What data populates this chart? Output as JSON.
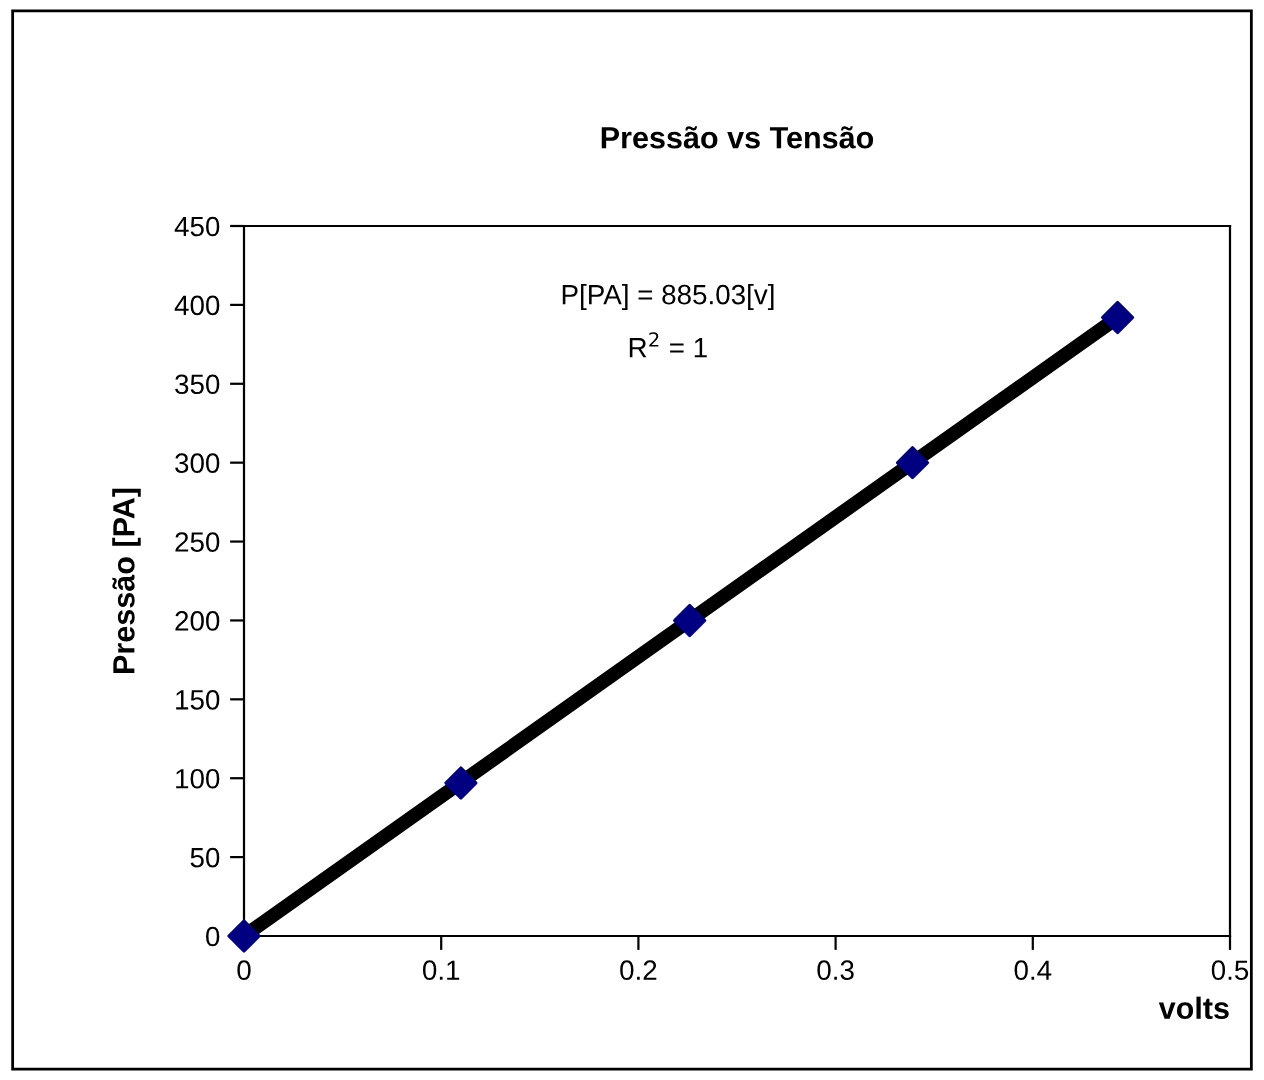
{
  "chart_data": {
    "type": "scatter",
    "title": "Pressão vs Tensão",
    "xlabel": "volts",
    "ylabel": "Pressão [PA]",
    "series": [
      {
        "type": "line",
        "color": "#000000",
        "x": [
          0,
          0.443
        ],
        "values": [
          0,
          392
        ],
        "marker": "none"
      },
      {
        "color": "#000080",
        "x": [
          0,
          0.11,
          0.226,
          0.339,
          0.443
        ],
        "values": [
          0,
          97,
          200,
          300,
          392
        ],
        "marker": "diamond"
      }
    ],
    "annotations": [
      "P[PA] = 885.03[v]",
      "R$^{2}$ = 1"
    ],
    "xlim": [
      0,
      0.5
    ],
    "xticks": [
      0,
      0.1,
      0.2,
      0.3,
      0.4,
      0.5
    ],
    "ylim": [
      0,
      450
    ],
    "yticks": [
      0,
      50,
      100,
      150,
      200,
      250,
      300,
      350,
      400,
      450
    ],
    "grid": false,
    "legend": false
  }
}
